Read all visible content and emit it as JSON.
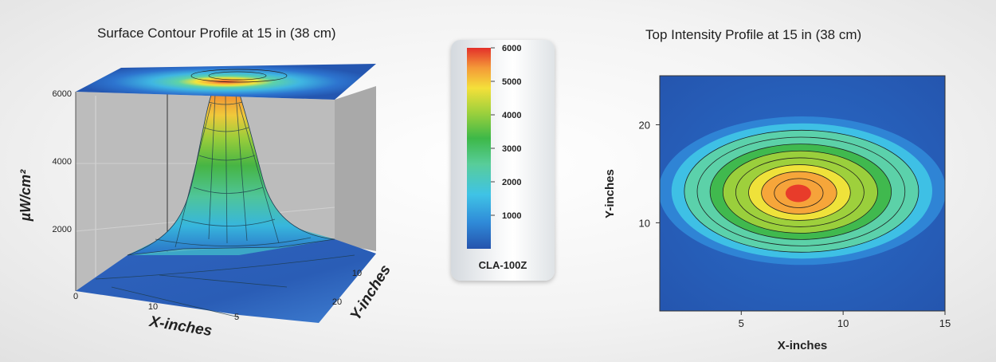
{
  "colors": {
    "scale": [
      "#1f4fa8",
      "#2f86d6",
      "#3fc3e6",
      "#5dd2a8",
      "#3fb84a",
      "#9fd13c",
      "#f4e43a",
      "#f7a33a",
      "#e83c2a"
    ],
    "wall": "#bdbdbd"
  },
  "chart_data": [
    {
      "type": "surface",
      "title": "Surface Contour Profile at 15 in (38 cm)",
      "xlabel": "X-inches",
      "ylabel": "Y-inches",
      "zlabel": "µW/cm²",
      "x_ticks": [
        "0",
        "10",
        "5"
      ],
      "y_ticks": [
        "10",
        "20"
      ],
      "z_ticks": [
        "6000",
        "4000",
        "2000"
      ],
      "zlim": [
        0,
        6000
      ],
      "peak": 6000
    },
    {
      "type": "colorbar",
      "name": "CLA-100Z",
      "ticks": [
        "6000",
        "5000",
        "4000",
        "3000",
        "2000",
        "1000"
      ],
      "range": [
        0,
        6000
      ]
    },
    {
      "type": "heatmap",
      "title": "Top Intensity Profile at 15 in (38 cm)",
      "xlabel": "X-inches",
      "ylabel": "Y-inches",
      "x_ticks": [
        "5",
        "10",
        "15"
      ],
      "y_ticks": [
        "20",
        "10"
      ],
      "xlim": [
        1,
        15
      ],
      "ylim": [
        1,
        25
      ],
      "peak": {
        "x": 7.8,
        "y": 13,
        "value": 6000
      },
      "levels": [
        1000,
        1500,
        2000,
        2500,
        3000,
        3500,
        4000,
        4500,
        5000,
        5500
      ]
    }
  ]
}
